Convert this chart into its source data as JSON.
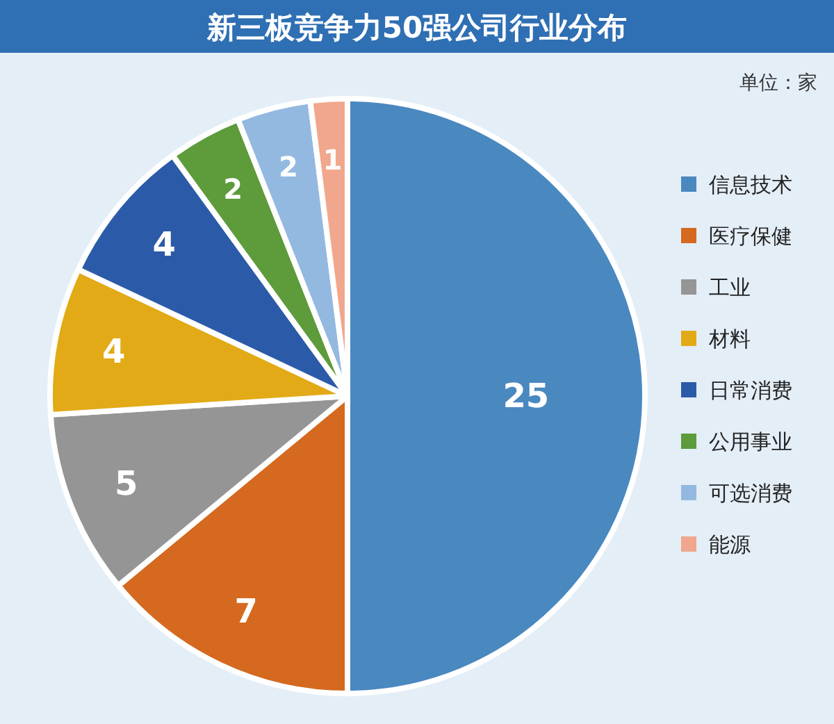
{
  "chart_data": {
    "type": "pie",
    "title": "新三板竞争力50强公司行业分布",
    "annotations": [
      "单位：家"
    ],
    "categories": [
      "信息技术",
      "医疗保健",
      "工业",
      "材料",
      "日常消费",
      "公用事业",
      "可选消费",
      "能源"
    ],
    "values": [
      25,
      7,
      5,
      4,
      4,
      2,
      2,
      1
    ],
    "colors": [
      "#4a88c0",
      "#d4691f",
      "#959595",
      "#e2aa17",
      "#2b5ba8",
      "#5d9b3b",
      "#93b9e1",
      "#f0a78d"
    ],
    "data_labels": true,
    "legend": "right"
  }
}
